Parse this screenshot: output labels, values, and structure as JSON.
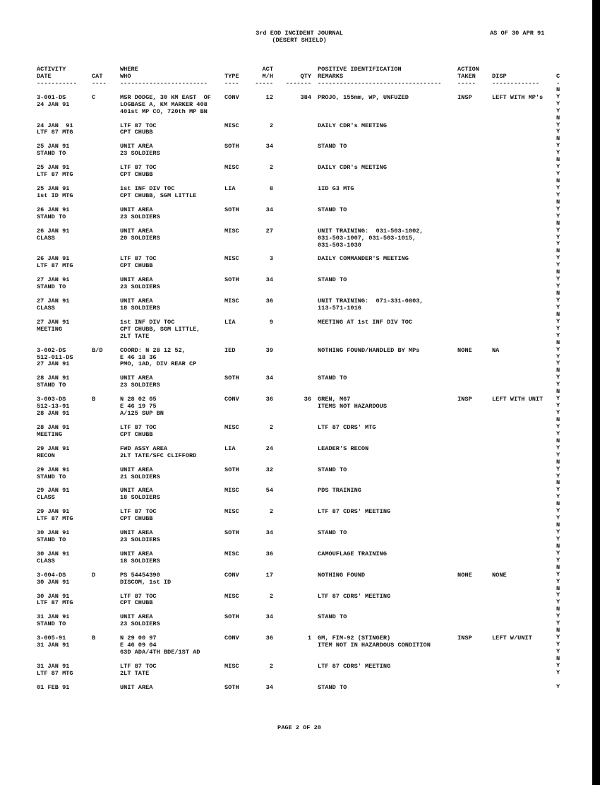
{
  "header": {
    "title": "3rd EOD INCIDENT JOURNAL",
    "subtitle": "(DESERT SHIELD)",
    "as_of": "AS OF 30 APR 91"
  },
  "columns": {
    "date": [
      "ACTIVITY",
      "DATE",
      "-----------"
    ],
    "cat": [
      "",
      "CAT",
      "----"
    ],
    "where": [
      "WHERE",
      "WHO",
      "------------------------"
    ],
    "type": [
      "",
      "TYPE",
      "----"
    ],
    "act": [
      "ACT",
      "M/H",
      "-----"
    ],
    "qty": [
      "",
      "QTY",
      "-------"
    ],
    "remarks": [
      "POSITIVE IDENTIFICATION",
      "REMARKS",
      "----------------------------------"
    ],
    "action": [
      "ACTION",
      "TAKEN",
      "-----"
    ],
    "disp": [
      "",
      "DISP",
      "-------------"
    ],
    "c": [
      "",
      "C",
      "-"
    ]
  },
  "entries": [
    {
      "date": [
        "3-001-DS",
        "24 JAN 91"
      ],
      "cat": "C",
      "where": [
        "MSR DODGE, 30 KM EAST  OF",
        "LOGBASE A, KM MARKER 408",
        "401st MP CO, 720th MP BN"
      ],
      "type": "CONV",
      "act": "12",
      "qty": "384",
      "remarks": [
        "PROJO, 155mm, WP, UNFUZED"
      ],
      "action": "INSP",
      "disp": "LEFT WITH MP's",
      "c": "NYYY"
    },
    {
      "date": [
        "24 JAN  91",
        "LTF 87 MTG"
      ],
      "where": [
        "LTF 87 TOC",
        "CPT CHUBB"
      ],
      "type": "MISC",
      "act": "2",
      "remarks": [
        "DAILY CDR's MEETING"
      ],
      "c": "NYY"
    },
    {
      "date": [
        "25 JAN 91",
        "STAND TO"
      ],
      "where": [
        "UNIT AREA",
        "23 SOLDIERS"
      ],
      "type": "SOTH",
      "act": "34",
      "remarks": [
        "STAND TO"
      ],
      "c": "NYY"
    },
    {
      "date": [
        "25 JAN 91",
        "LTF 87 MTG"
      ],
      "where": [
        "LTF 87 TOC",
        "CPT CHUBB"
      ],
      "type": "MISC",
      "act": "2",
      "remarks": [
        "DAILY CDR's MEETING"
      ],
      "c": "NYY"
    },
    {
      "date": [
        "25 JAN 91",
        "1st ID MTG"
      ],
      "where": [
        "1st INF DIV TOC",
        "CPT CHUBB, SGM LITTLE"
      ],
      "type": "LIA",
      "act": "8",
      "remarks": [
        "1ID G3 MTG"
      ],
      "c": "NYY"
    },
    {
      "date": [
        "26 JAN 91",
        "STAND TO"
      ],
      "where": [
        "UNIT AREA",
        "23 SOLDIERS"
      ],
      "type": "SOTH",
      "act": "34",
      "remarks": [
        "STAND TO"
      ],
      "c": "NYY"
    },
    {
      "date": [
        "26 JAN 91",
        "CLASS"
      ],
      "where": [
        "UNIT AREA",
        "20 SOLDIERS"
      ],
      "type": "MISC",
      "act": "27",
      "remarks": [
        "UNIT TRAINING:  031-503-1002,",
        "031-503-1007, 031-503-1015,",
        "031-503-1030"
      ],
      "c": "NYYY"
    },
    {
      "date": [
        "26 JAN 91",
        "LTF 87 MTG"
      ],
      "where": [
        "LTF 87 TOC",
        "CPT CHUBB"
      ],
      "type": "MISC",
      "act": "3",
      "remarks": [
        "DAILY COMMANDER'S MEETING"
      ],
      "c": "NYY"
    },
    {
      "date": [
        "27 JAN 91",
        "STAND TO"
      ],
      "where": [
        "UNIT AREA",
        "23 SOLDIERS"
      ],
      "type": "SOTH",
      "act": "34",
      "remarks": [
        "STAND TO"
      ],
      "c": "NYY"
    },
    {
      "date": [
        "27 JAN 91",
        "CLASS"
      ],
      "where": [
        "UNIT AREA",
        "18 SOLDIERS"
      ],
      "type": "MISC",
      "act": "36",
      "remarks": [
        "UNIT TRAINING:  071-331-0803,",
        "113-571-1016"
      ],
      "c": "NYY"
    },
    {
      "date": [
        "27 JAN 91",
        "MEETING"
      ],
      "where": [
        "1st INF DIV TOC",
        "CPT CHUBB, SGM LITTLE,",
        "2LT TATE"
      ],
      "type": "LIA",
      "act": "9",
      "remarks": [
        "MEETING AT 1st INF DIV TOC"
      ],
      "c": "NYYY"
    },
    {
      "date": [
        "3-002-DS",
        "512-011-DS",
        "27 JAN 91"
      ],
      "cat": "B/D",
      "where": [
        "COORD: N 28 12 52,",
        "E 46 18 36",
        "PMO, 1AD, DIV REAR CP"
      ],
      "type": "IED",
      "act": "39",
      "remarks": [
        "NOTHING FOUND/HANDLED BY MPs"
      ],
      "action": "NONE",
      "disp": "NA",
      "c": "NYYY"
    },
    {
      "date": [
        "28 JAN 91",
        "STAND TO"
      ],
      "where": [
        "UNIT AREA",
        "23 SOLDIERS"
      ],
      "type": "SOTH",
      "act": "34",
      "remarks": [
        "STAND TO"
      ],
      "c": "NYY"
    },
    {
      "date": [
        "3-003-DS",
        "512-13-91",
        "28 JAN 91"
      ],
      "cat": "B",
      "where": [
        "N 28 02 05",
        "E 46 19 75",
        "A/125 SUP BN"
      ],
      "type": "CONV",
      "act": "36",
      "qty": "36",
      "remarks": [
        "GREN, M67",
        "ITEMS NOT HAZARDOUS"
      ],
      "action": "INSP",
      "disp": "LEFT WITH UNIT",
      "c": "NYYY"
    },
    {
      "date": [
        "28 JAN 91",
        "MEETING"
      ],
      "where": [
        "LTF 87 TOC",
        "CPT CHUBB"
      ],
      "type": "MISC",
      "act": "2",
      "remarks": [
        "LTF 87 CDRS' MTG"
      ],
      "c": "NYY"
    },
    {
      "date": [
        "29 JAN 91",
        "RECON"
      ],
      "where": [
        "FWD ASSY AREA",
        "2LT TATE/SFC CLIFFORD"
      ],
      "type": "LIA",
      "act": "24",
      "remarks": [
        "LEADER'S RECON"
      ],
      "c": "NYY"
    },
    {
      "date": [
        "29 JAN 91",
        "STAND TO"
      ],
      "where": [
        "UNIT AREA",
        "21 SOLDIERS"
      ],
      "type": "SOTH",
      "act": "32",
      "remarks": [
        "STAND TO"
      ],
      "c": "NYY"
    },
    {
      "date": [
        "29 JAN 91",
        "CLASS"
      ],
      "where": [
        "UNIT AREA",
        "18 SOLDIERS"
      ],
      "type": "MISC",
      "act": "54",
      "remarks": [
        "PDS TRAINING"
      ],
      "c": "NYY"
    },
    {
      "date": [
        "29 JAN 91",
        "LTF 87 MTG"
      ],
      "where": [
        "LTF 87 TOC",
        "CPT CHUBB"
      ],
      "type": "MISC",
      "act": "2",
      "remarks": [
        "LTF 87 CDRS' MEETING"
      ],
      "c": "NYY"
    },
    {
      "date": [
        "30 JAN 91",
        "STAND TO"
      ],
      "where": [
        "UNIT AREA",
        "23 SOLDIERS"
      ],
      "type": "SOTH",
      "act": "34",
      "remarks": [
        "STAND TO"
      ],
      "c": "NYY"
    },
    {
      "date": [
        "30 JAN 91",
        "CLASS"
      ],
      "where": [
        "UNIT AREA",
        "18 SOLDIERS"
      ],
      "type": "MISC",
      "act": "36",
      "remarks": [
        "CAMOUFLAGE TRAINING"
      ],
      "c": "NYY"
    },
    {
      "date": [
        "3-004-DS",
        "30 JAN 91"
      ],
      "cat": "D",
      "where": [
        "PS 54454390",
        "DISCOM, 1st ID"
      ],
      "type": "CONV",
      "act": "17",
      "remarks": [
        "NOTHING FOUND"
      ],
      "action": "NONE",
      "disp": "NONE",
      "c": "NYY"
    },
    {
      "date": [
        "30 JAN 91",
        "LTF 87 MTG"
      ],
      "where": [
        "LTF 87 TOC",
        "CPT CHUBB"
      ],
      "type": "MISC",
      "act": "2",
      "remarks": [
        "LTF 87 CDRS' MEETING"
      ],
      "c": "NYY"
    },
    {
      "date": [
        "31 JAN 91",
        "STAND TO"
      ],
      "where": [
        "UNIT AREA",
        "23 SOLDIERS"
      ],
      "type": "SOTH",
      "act": "34",
      "remarks": [
        "STAND TO"
      ],
      "c": "NYY"
    },
    {
      "date": [
        "3-005-91",
        "31 JAN 91"
      ],
      "cat": "B",
      "where": [
        "N 29 00 97",
        "E 46 09 04",
        "63D ADA/4TH BDE/1ST AD"
      ],
      "type": "CONV",
      "act": "36",
      "qty": "1",
      "remarks": [
        "GM, FIM-92 (STINGER)",
        "ITEM NOT IN HAZARDOUS CONDITION"
      ],
      "action": "INSP",
      "disp": "LEFT W/UNIT",
      "c": "NYYY"
    },
    {
      "date": [
        "31 JAN 91",
        "LTF 87 MTG"
      ],
      "where": [
        "LTF 87 TOC",
        "2LT TATE"
      ],
      "type": "MISC",
      "act": "2",
      "remarks": [
        "LTF 87 CDRS' MEETING"
      ],
      "c": "NYY"
    },
    {
      "date": [
        "01 FEB 91"
      ],
      "where": [
        "UNIT AREA"
      ],
      "type": "SOTH",
      "act": "34",
      "remarks": [
        "STAND TO"
      ],
      "c": " Y"
    }
  ],
  "footer": {
    "page": "PAGE 2 OF 20"
  }
}
